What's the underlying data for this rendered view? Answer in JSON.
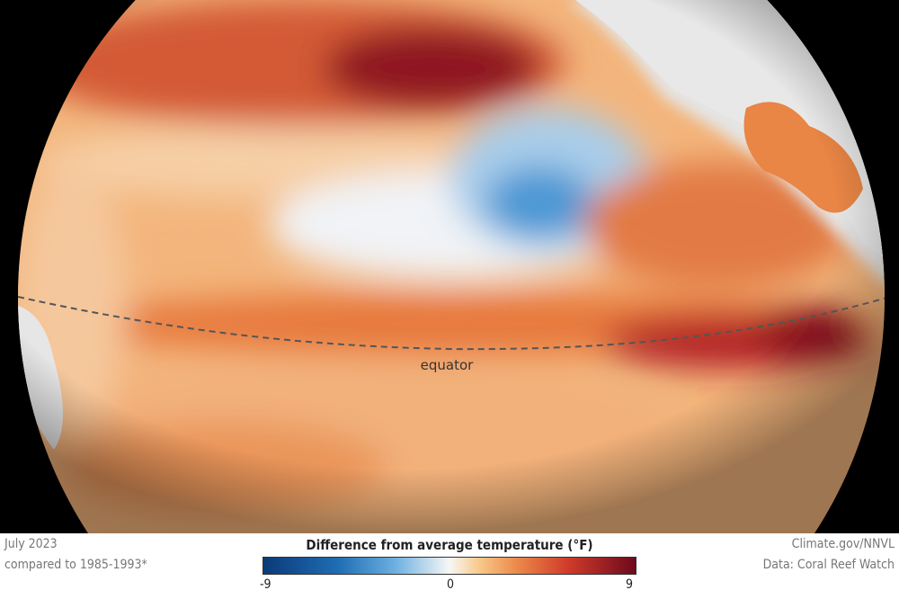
{
  "map": {
    "equator_label": "equator",
    "colors": {
      "ocean_warm": "#e9843f",
      "ocean_hot": "#a3131d",
      "ocean_cool": "#3d8ed0",
      "land": "#e6e6e6",
      "space": "#000000"
    }
  },
  "legend": {
    "date": "July 2023",
    "baseline": "compared to 1985-1993*",
    "title": "Difference from average temperature (°F)",
    "scale_min": "-9",
    "scale_mid": "0",
    "scale_max": "9",
    "credit": "Climate.gov/NNVL",
    "data_source": "Data: Coral Reef Watch"
  }
}
